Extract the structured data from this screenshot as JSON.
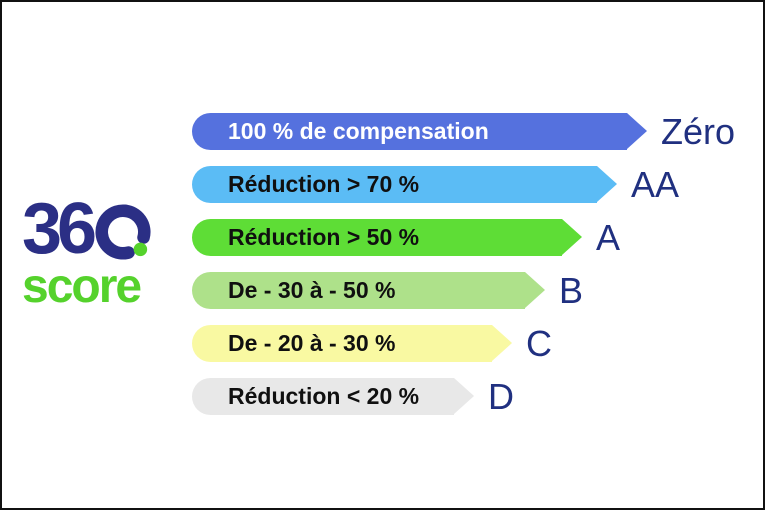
{
  "frame": {
    "background_color": "#ffffff",
    "border_color": "#111111"
  },
  "logo": {
    "text_360": "360",
    "text_score": "score",
    "navy_color": "#2b2f85",
    "green_color": "#55d22c"
  },
  "scale": {
    "grade_text_color": "#203080",
    "rows": [
      {
        "label": "100 % de compensation",
        "grade": "Zéro",
        "color": "#5571de",
        "text_color": "#ffffff",
        "body_width": 435
      },
      {
        "label": "Réduction > 70 %",
        "grade": "AA",
        "color": "#5bbcf5",
        "text_color": "#101010",
        "body_width": 405
      },
      {
        "label": "Réduction > 50 %",
        "grade": "A",
        "color": "#5edd36",
        "text_color": "#101010",
        "body_width": 370
      },
      {
        "label": "De - 30 à - 50 %",
        "grade": "B",
        "color": "#aee18a",
        "text_color": "#101010",
        "body_width": 333
      },
      {
        "label": "De - 20 à - 30 %",
        "grade": "C",
        "color": "#f9f9a2",
        "text_color": "#101010",
        "body_width": 300
      },
      {
        "label": "Réduction < 20 %",
        "grade": "D",
        "color": "#e8e8e8",
        "text_color": "#101010",
        "body_width": 262
      }
    ]
  }
}
